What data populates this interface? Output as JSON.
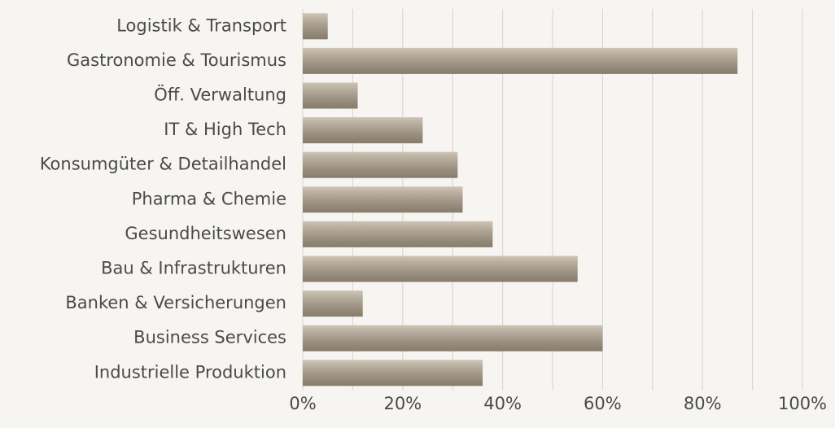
{
  "chart_data": {
    "type": "barh",
    "categories": [
      "Logistik & Transport",
      "Gastronomie & Tourismus",
      "Öff. Verwaltung",
      "IT & High Tech",
      "Konsumgüter & Detailhandel",
      "Pharma & Chemie",
      "Gesundheitswesen",
      "Bau & Infrastrukturen",
      "Banken & Versicherungen",
      "Business Services",
      "Industrielle Produktion"
    ],
    "values": [
      5,
      87,
      11,
      24,
      31,
      32,
      38,
      55,
      12,
      60,
      36
    ],
    "color": "#b5a690",
    "xlim": [
      0,
      100
    ],
    "xticks": [
      {
        "value": 0,
        "label": "0%"
      },
      {
        "value": 20,
        "label": "20%"
      },
      {
        "value": 40,
        "label": "40%"
      },
      {
        "value": 60,
        "label": "60%"
      },
      {
        "value": 80,
        "label": "80%"
      },
      {
        "value": 100,
        "label": "100%"
      }
    ],
    "minor_xticks": [
      10,
      30,
      50,
      70,
      90
    ],
    "grid": true
  }
}
